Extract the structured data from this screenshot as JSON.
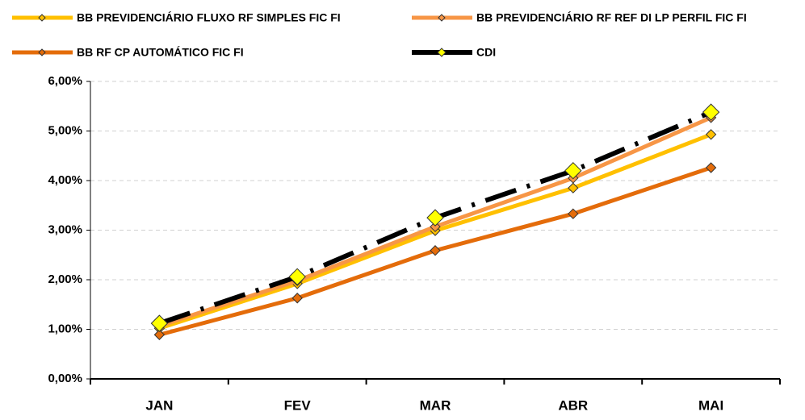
{
  "chart_data": {
    "type": "line",
    "categories": [
      "JAN",
      "FEV",
      "MAR",
      "ABR",
      "MAI"
    ],
    "series": [
      {
        "name": "BB PREVIDENCIÁRIO FLUXO RF SIMPLES FIC FI",
        "color": "#FFC000",
        "marker_color": "#FFC000",
        "values": [
          1.02,
          1.92,
          2.99,
          3.85,
          4.93
        ]
      },
      {
        "name": "BB PREVIDENCIÁRIO RF REF DI LP PERFIL FIC FI",
        "color": "#F79646",
        "marker_color": "#F79646",
        "values": [
          1.07,
          1.98,
          3.07,
          4.05,
          5.27
        ]
      },
      {
        "name": "BB RF CP AUTOMÁTICO FIC FI",
        "color": "#E46C0A",
        "marker_color": "#E46C0A",
        "values": [
          0.89,
          1.63,
          2.59,
          3.33,
          4.26
        ]
      },
      {
        "name": "CDI",
        "color": "#000000",
        "marker_color": "#FFFF00",
        "dashed": true,
        "values": [
          1.12,
          2.06,
          3.25,
          4.2,
          5.38
        ]
      }
    ],
    "ylim": [
      0,
      6
    ],
    "yticks": [
      {
        "value": 0,
        "label": "0,00%"
      },
      {
        "value": 1,
        "label": "1,00%"
      },
      {
        "value": 2,
        "label": "2,00%"
      },
      {
        "value": 3,
        "label": "3,00%"
      },
      {
        "value": 4,
        "label": "4,00%"
      },
      {
        "value": 5,
        "label": "5,00%"
      },
      {
        "value": 6,
        "label": "6,00%"
      }
    ],
    "grid": true
  }
}
